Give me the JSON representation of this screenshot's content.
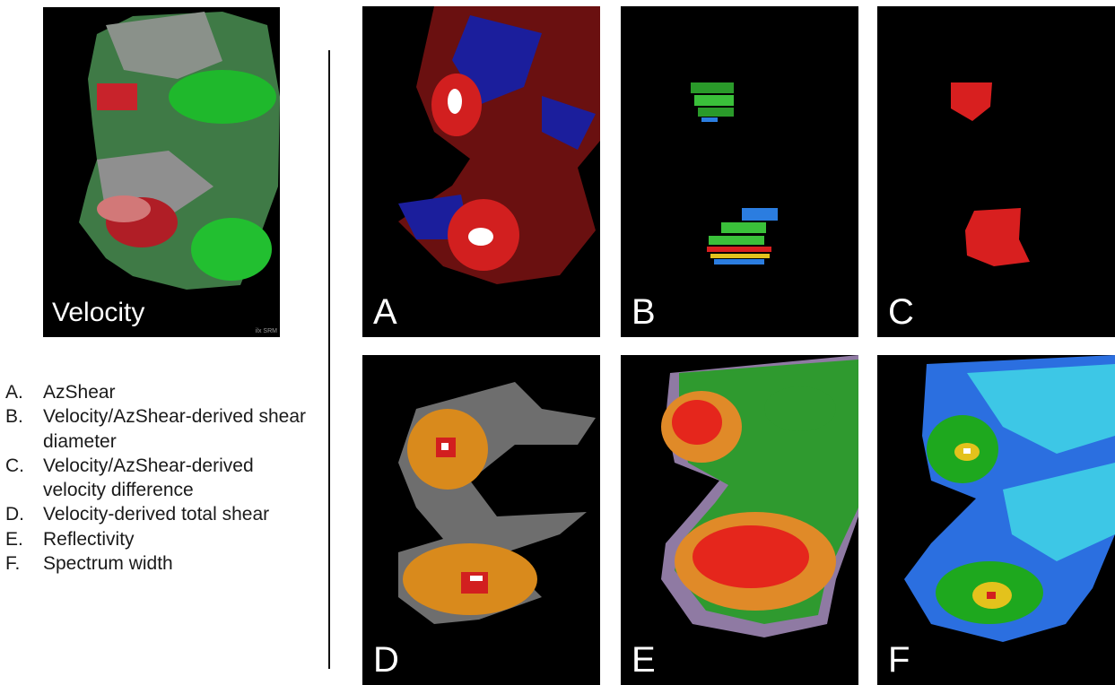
{
  "velocity_panel": {
    "label": "Velocity",
    "corner_text": "ilx SRM"
  },
  "panels": [
    {
      "letter": "A"
    },
    {
      "letter": "B"
    },
    {
      "letter": "C"
    },
    {
      "letter": "D"
    },
    {
      "letter": "E"
    },
    {
      "letter": "F"
    }
  ],
  "legend": [
    {
      "letter": "A.",
      "text": "AzShear"
    },
    {
      "letter": "B.",
      "text": "Velocity/AzShear-derived shear diameter"
    },
    {
      "letter": "C.",
      "text": "Velocity/AzShear-derived velocity difference"
    },
    {
      "letter": "D.",
      "text": "Velocity-derived total shear"
    },
    {
      "letter": "E.",
      "text": "Reflectivity"
    },
    {
      "letter": "F.",
      "text": "Spectrum width"
    }
  ],
  "colors": {
    "velocity_inbound": "#2fa83a",
    "velocity_outbound": "#c8232b",
    "azshear_positive": "#b81616",
    "azshear_negative": "#1b1e9c",
    "reflectivity_high": "#e5261c",
    "spectrum_low": "#2b6fe0",
    "total_shear": "#d98a1c"
  }
}
